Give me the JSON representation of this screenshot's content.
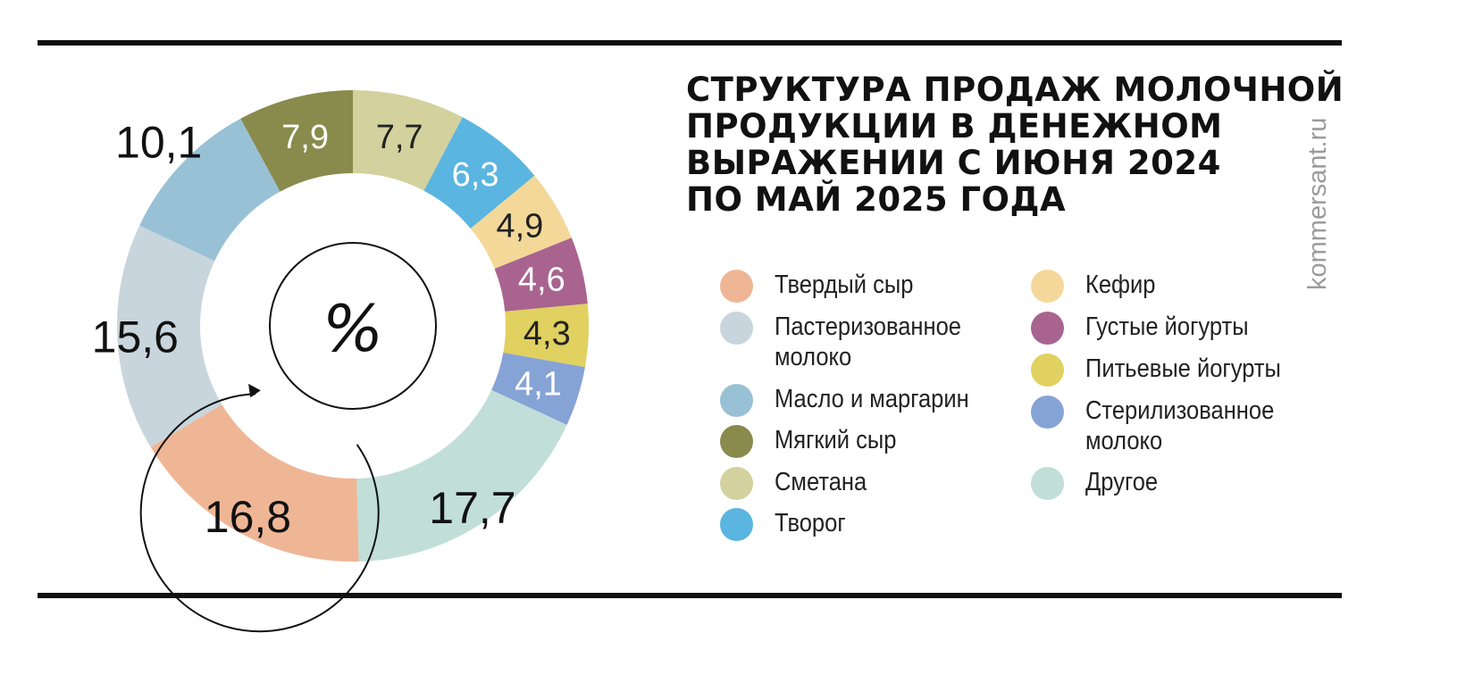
{
  "title_lines": [
    "Структура продаж молочной",
    "продукции в денежном",
    "выражении с июня 2024",
    "по май 2025 года"
  ],
  "brand": "kommersant.ru",
  "center_label": "%",
  "chart_data": {
    "type": "pie",
    "title": "Структура продаж молочной продукции в денежном выражении с июня 2024 по май 2025 года",
    "unit": "%",
    "slices": [
      {
        "name": "Сметана",
        "value": 7.7,
        "label": "7,7",
        "color": "#d3d19d",
        "label_color": "#222222"
      },
      {
        "name": "Творог",
        "value": 6.3,
        "label": "6,3",
        "color": "#5ab5e0",
        "label_color": "#ffffff"
      },
      {
        "name": "Кефир",
        "value": 4.9,
        "label": "4,9",
        "color": "#f3d899",
        "label_color": "#222222"
      },
      {
        "name": "Густые йогурты",
        "value": 4.6,
        "label": "4,6",
        "color": "#a8648f",
        "label_color": "#ffffff"
      },
      {
        "name": "Питьевые йогурты",
        "value": 4.3,
        "label": "4,3",
        "color": "#e0d160",
        "label_color": "#222222"
      },
      {
        "name": "Стерилизованное молоко",
        "value": 4.1,
        "label": "4,1",
        "color": "#86a3d6",
        "label_color": "#ffffff"
      },
      {
        "name": "Другое",
        "value": 17.7,
        "label": "17,7",
        "color": "#c1ded8",
        "label_color": "#111111"
      },
      {
        "name": "Твердый сыр",
        "value": 16.8,
        "label": "16,8",
        "color": "#efb696",
        "label_color": "#111111"
      },
      {
        "name": "Пастеризованное молоко",
        "value": 15.6,
        "label": "15,6",
        "color": "#c9d5dc",
        "label_color": "#111111"
      },
      {
        "name": "Масло и маргарин",
        "value": 10.1,
        "label": "10,1",
        "color": "#99c1d6",
        "label_color": "#111111"
      },
      {
        "name": "Мягкий сыр",
        "value": 7.9,
        "label": "7,9",
        "color": "#888b4c",
        "label_color": "#ffffff"
      }
    ]
  },
  "legend": {
    "left": [
      {
        "label": "Твердый сыр",
        "color": "#efb696"
      },
      {
        "label": "Пастеризованное\nмолоко",
        "color": "#c9d5dc"
      },
      {
        "label": "Масло и маргарин",
        "color": "#99c1d6"
      },
      {
        "label": "Мягкий сыр",
        "color": "#888b4c"
      },
      {
        "label": "Сметана",
        "color": "#d3d19d"
      },
      {
        "label": "Творог",
        "color": "#5ab5e0"
      }
    ],
    "right": [
      {
        "label": "Кефир",
        "color": "#f3d899"
      },
      {
        "label": "Густые йогурты",
        "color": "#a8648f"
      },
      {
        "label": "Питьевые йогурты",
        "color": "#e0d160"
      },
      {
        "label": "Стерилизованное\nмолоко",
        "color": "#86a3d6"
      },
      {
        "label": "Другое",
        "color": "#c1ded8"
      }
    ]
  }
}
